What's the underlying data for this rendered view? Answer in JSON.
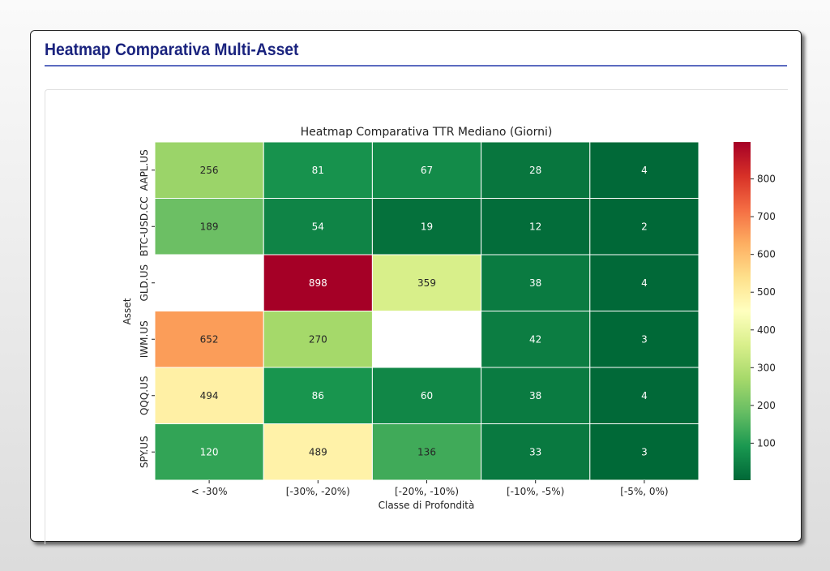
{
  "page": {
    "title": "Heatmap Comparativa Multi-Asset"
  },
  "chart_data": {
    "type": "heatmap",
    "title": "Heatmap Comparativa TTR Mediano (Giorni)",
    "xlabel": "Classe di Profondità",
    "ylabel": "Asset",
    "x_categories": [
      "< -30%",
      "[-30%, -20%)",
      "[-20%, -10%)",
      "[-10%, -5%)",
      "[-5%, 0%)"
    ],
    "y_categories": [
      "AAPL.US",
      "BTC-USD.CC",
      "GLD.US",
      "IWM.US",
      "QQQ.US",
      "SPY.US"
    ],
    "values": [
      [
        256,
        81,
        67,
        28,
        4
      ],
      [
        189,
        54,
        19,
        12,
        2
      ],
      [
        null,
        898,
        359,
        38,
        4
      ],
      [
        652,
        270,
        null,
        42,
        3
      ],
      [
        494,
        86,
        60,
        38,
        4
      ],
      [
        120,
        489,
        136,
        33,
        3
      ]
    ],
    "colormap": "RdYlGn_r",
    "color_range": [
      2,
      898
    ],
    "colorbar_ticks": [
      100,
      200,
      300,
      400,
      500,
      600,
      700,
      800
    ],
    "annotations": true
  }
}
